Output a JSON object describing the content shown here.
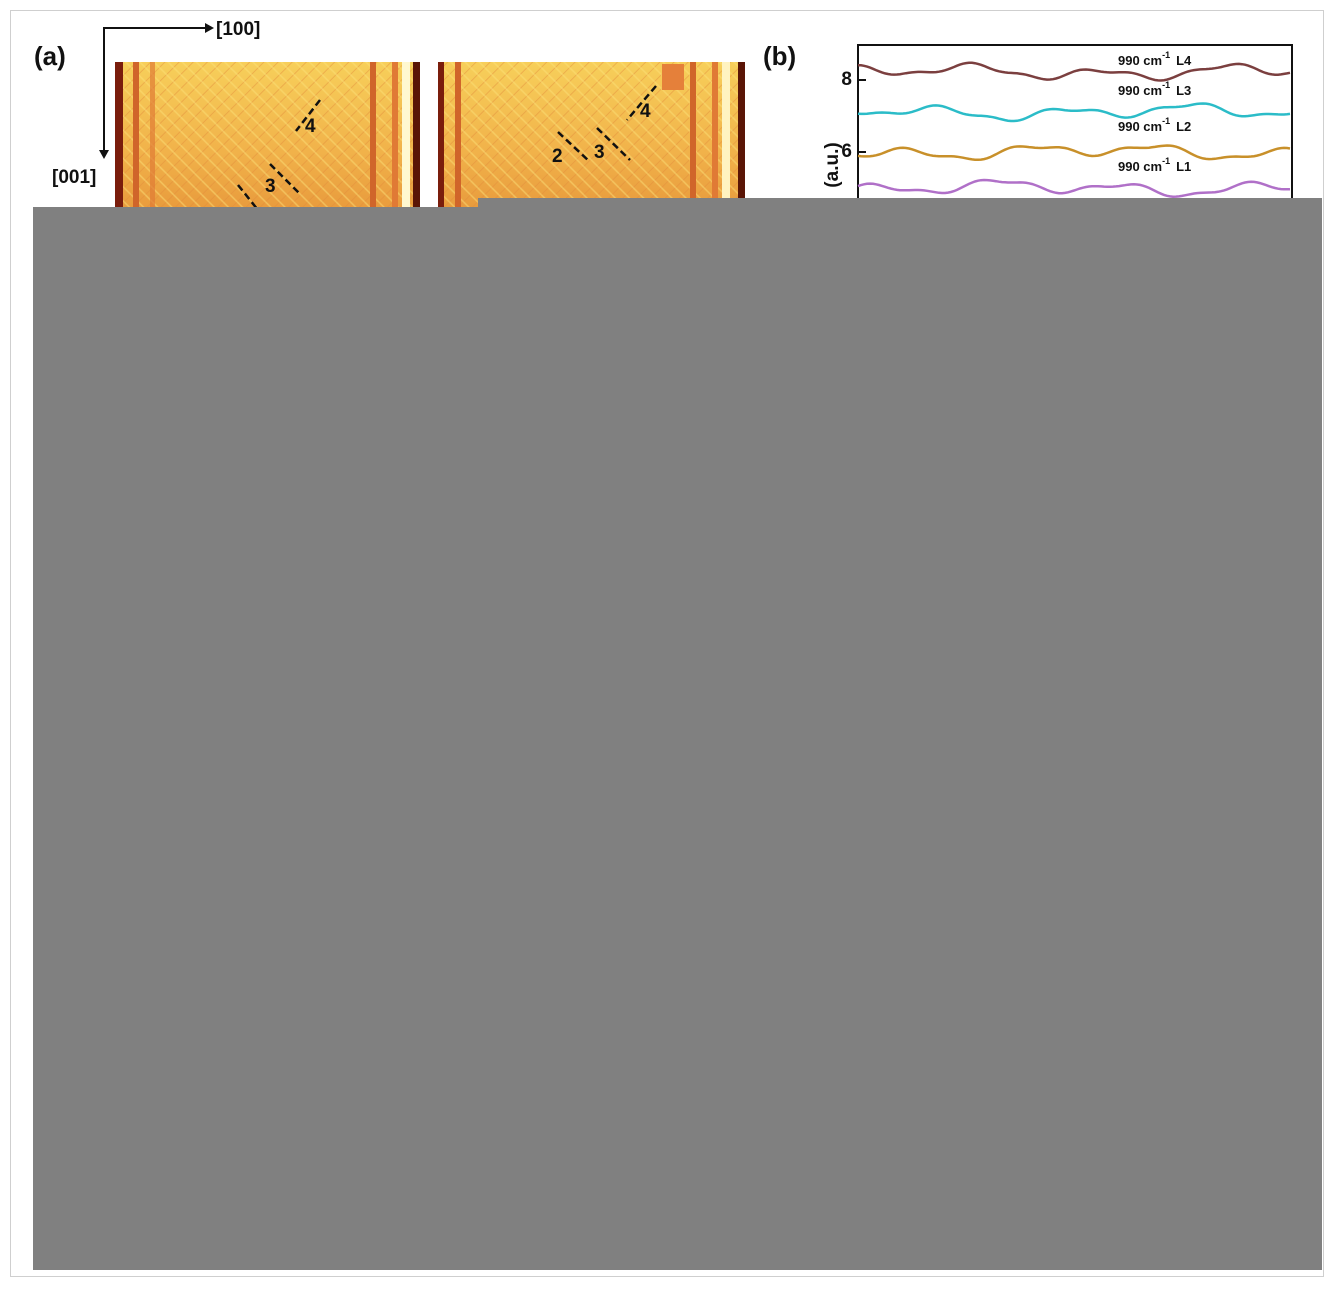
{
  "panel_a": {
    "label": "(a)",
    "axis_x": "[100]",
    "axis_z": "[001]",
    "image_1_markers": [
      "4",
      "3"
    ],
    "image_2_markers": [
      "2",
      "3",
      "4"
    ]
  },
  "panel_b": {
    "label": "(b)",
    "y_label": "(a.u.)",
    "yticks": [
      8,
      6
    ],
    "curves": [
      {
        "text": "990 cm",
        "sup": "-1",
        "name": "L4",
        "color": "#7b3f3f"
      },
      {
        "text": "990 cm",
        "sup": "-1",
        "name": "L3",
        "color": "#2bbcc8"
      },
      {
        "text": "990 cm",
        "sup": "-1",
        "name": "L2",
        "color": "#c8902a"
      },
      {
        "text": "990 cm",
        "sup": "-1",
        "name": "L1",
        "color": "#b070c8"
      }
    ]
  }
}
